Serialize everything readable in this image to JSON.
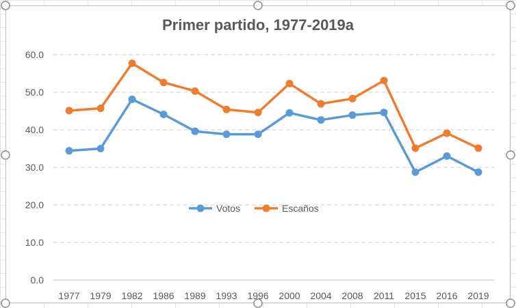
{
  "chart_data": {
    "type": "line",
    "title": "Primer partido, 1977-2019a",
    "xlabel": "",
    "ylabel": "",
    "categories": [
      "1977",
      "1979",
      "1982",
      "1986",
      "1989",
      "1993",
      "1996",
      "2000",
      "2004",
      "2008",
      "2011",
      "2015",
      "2016",
      "2019"
    ],
    "ylim": [
      0,
      60
    ],
    "yticks": [
      "0.0",
      "10.0",
      "20.0",
      "30.0",
      "40.0",
      "50.0",
      "60.0"
    ],
    "grid": true,
    "legend_position": "center",
    "series": [
      {
        "name": "Votos",
        "color": "#5b9bd5",
        "values": [
          34.4,
          35.0,
          48.1,
          44.1,
          39.6,
          38.8,
          38.8,
          44.5,
          42.6,
          43.9,
          44.6,
          28.7,
          33.0,
          28.7
        ]
      },
      {
        "name": "Escaños",
        "color": "#ed7d31",
        "values": [
          45.1,
          45.7,
          57.7,
          52.6,
          50.3,
          45.4,
          44.6,
          52.3,
          46.9,
          48.3,
          53.1,
          35.1,
          39.1,
          35.1
        ]
      }
    ]
  }
}
